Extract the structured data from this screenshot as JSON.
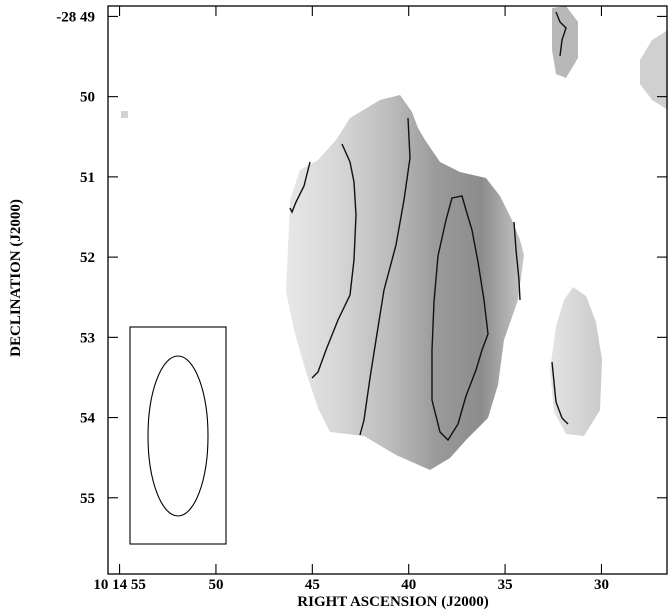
{
  "chart_data": {
    "type": "heatmap",
    "xlabel": "RIGHT ASCENSION (J2000)",
    "ylabel": "DECLINATION (J2000)",
    "x_ticks": [
      {
        "value": 0,
        "label": "10 14 55"
      },
      {
        "value": 5,
        "label": "50"
      },
      {
        "value": 10,
        "label": "45"
      },
      {
        "value": 15,
        "label": "40"
      },
      {
        "value": 20,
        "label": "35"
      },
      {
        "value": 25,
        "label": "30"
      }
    ],
    "y_ticks": [
      {
        "value": 49,
        "label": "-28 49"
      },
      {
        "value": 50,
        "label": "50"
      },
      {
        "value": 51,
        "label": "51"
      },
      {
        "value": 52,
        "label": "52"
      },
      {
        "value": 53,
        "label": "53"
      },
      {
        "value": 54,
        "label": "54"
      },
      {
        "value": 55,
        "label": "55"
      }
    ],
    "xlim": [
      -0.6,
      28.4
    ],
    "ylim": [
      55.95,
      48.87
    ],
    "colormap": "greyscale",
    "colors": {
      "frame": "#000000",
      "contour": "#111111",
      "light": "#e6e6e6",
      "dark": "#8a8a8a"
    },
    "beam": {
      "box": true,
      "shape": "ellipse",
      "orientation": "north-south"
    },
    "grid": false
  }
}
